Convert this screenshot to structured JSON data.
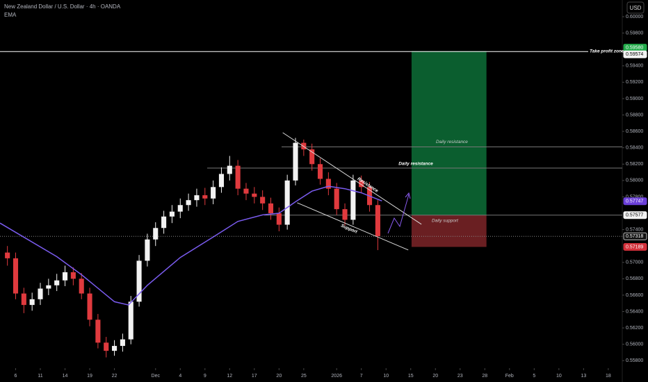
{
  "chart_data": {
    "type": "candlestick",
    "title": "New Zealand Dollar / U.S. Dollar · 4h · OANDA",
    "subtitle": "EMA",
    "currency": "USD",
    "up_color": "#f2f2f2",
    "down_color": "#e03a3e",
    "xlim": [
      -1.9,
      73.7
    ],
    "ylim": [
      0.55709,
      0.60204
    ],
    "grid": false,
    "xticks": [
      {
        "value": 0,
        "label": "6"
      },
      {
        "value": 3,
        "label": "11"
      },
      {
        "value": 6,
        "label": "14"
      },
      {
        "value": 9,
        "label": "19"
      },
      {
        "value": 12,
        "label": "22"
      },
      {
        "value": 17,
        "label": "Dec"
      },
      {
        "value": 20,
        "label": "4"
      },
      {
        "value": 23,
        "label": "9"
      },
      {
        "value": 26,
        "label": "12"
      },
      {
        "value": 29,
        "label": "17"
      },
      {
        "value": 32,
        "label": "20"
      },
      {
        "value": 35,
        "label": "25"
      },
      {
        "value": 39,
        "label": "2026"
      },
      {
        "value": 42,
        "label": "7"
      },
      {
        "value": 45,
        "label": "10"
      },
      {
        "value": 48,
        "label": "15"
      },
      {
        "value": 51,
        "label": "20"
      },
      {
        "value": 54,
        "label": "23"
      },
      {
        "value": 57,
        "label": "28"
      },
      {
        "value": 60,
        "label": "Feb"
      },
      {
        "value": 63,
        "label": "5"
      },
      {
        "value": 66,
        "label": "10"
      },
      {
        "value": 69,
        "label": "13"
      },
      {
        "value": 72,
        "label": "18"
      }
    ],
    "yticks": [
      {
        "value": 0.558,
        "label": "0.55800"
      },
      {
        "value": 0.56,
        "label": "0.56000"
      },
      {
        "value": 0.562,
        "label": "0.56200"
      },
      {
        "value": 0.564,
        "label": "0.56400"
      },
      {
        "value": 0.566,
        "label": "0.56600"
      },
      {
        "value": 0.568,
        "label": "0.56800"
      },
      {
        "value": 0.57,
        "label": "0.57000"
      },
      {
        "value": 0.574,
        "label": "0.57400"
      },
      {
        "value": 0.578,
        "label": "0.57800"
      },
      {
        "value": 0.58,
        "label": "0.58000"
      },
      {
        "value": 0.582,
        "label": "0.58200"
      },
      {
        "value": 0.584,
        "label": "0.58400"
      },
      {
        "value": 0.586,
        "label": "0.58600"
      },
      {
        "value": 0.588,
        "label": "0.58800"
      },
      {
        "value": 0.59,
        "label": "0.59000"
      },
      {
        "value": 0.592,
        "label": "0.59200"
      },
      {
        "value": 0.594,
        "label": "0.59400"
      },
      {
        "value": 0.598,
        "label": "0.59800"
      },
      {
        "value": 0.6,
        "label": "0.60000"
      }
    ],
    "x": [
      -1,
      0,
      1,
      2,
      3,
      4,
      5,
      6,
      7,
      8,
      9,
      10,
      11,
      12,
      13,
      14,
      15,
      16,
      17,
      18,
      19,
      20,
      21,
      22,
      23,
      24,
      25,
      26,
      27,
      28,
      29,
      30,
      31,
      32,
      33,
      34,
      35,
      36,
      37,
      38,
      39,
      40,
      41,
      42,
      43,
      44
    ],
    "open": [
      0.5712,
      0.5705,
      0.5662,
      0.5648,
      0.5655,
      0.5668,
      0.5672,
      0.5678,
      0.5688,
      0.568,
      0.5662,
      0.563,
      0.5602,
      0.5592,
      0.5598,
      0.5606,
      0.5652,
      0.5702,
      0.5728,
      0.5742,
      0.5756,
      0.5762,
      0.577,
      0.5776,
      0.5782,
      0.5778,
      0.5792,
      0.5808,
      0.5818,
      0.579,
      0.5784,
      0.578,
      0.5772,
      0.576,
      0.5746,
      0.58,
      0.5846,
      0.5838,
      0.582,
      0.5802,
      0.579,
      0.5765,
      0.5752,
      0.58,
      0.5792,
      0.577
    ],
    "high": [
      0.572,
      0.5712,
      0.5669,
      0.5663,
      0.5675,
      0.568,
      0.5686,
      0.5696,
      0.5694,
      0.5687,
      0.5669,
      0.5637,
      0.5609,
      0.5605,
      0.5613,
      0.5659,
      0.5709,
      0.5735,
      0.5749,
      0.5763,
      0.577,
      0.5778,
      0.5784,
      0.579,
      0.5791,
      0.58,
      0.5816,
      0.583,
      0.5825,
      0.5797,
      0.5792,
      0.5788,
      0.5779,
      0.5767,
      0.5807,
      0.5852,
      0.585,
      0.5845,
      0.5827,
      0.581,
      0.5797,
      0.5772,
      0.5807,
      0.5806,
      0.5798,
      0.5776
    ],
    "low": [
      0.5696,
      0.5655,
      0.5638,
      0.5641,
      0.5648,
      0.566,
      0.5665,
      0.5671,
      0.5672,
      0.5655,
      0.5622,
      0.5595,
      0.5584,
      0.5586,
      0.5591,
      0.56,
      0.5646,
      0.5695,
      0.572,
      0.5735,
      0.5748,
      0.5754,
      0.5763,
      0.5768,
      0.577,
      0.5771,
      0.5785,
      0.58,
      0.5782,
      0.5776,
      0.5772,
      0.5764,
      0.5752,
      0.5738,
      0.574,
      0.5794,
      0.583,
      0.5812,
      0.5795,
      0.5782,
      0.5758,
      0.5745,
      0.5746,
      0.5785,
      0.5762,
      0.5715
    ],
    "close": [
      0.5705,
      0.5662,
      0.5648,
      0.5655,
      0.5668,
      0.5672,
      0.5678,
      0.5688,
      0.568,
      0.5662,
      0.563,
      0.5602,
      0.5592,
      0.5598,
      0.5606,
      0.5652,
      0.5702,
      0.5728,
      0.5742,
      0.5756,
      0.5762,
      0.577,
      0.5776,
      0.5782,
      0.5778,
      0.5792,
      0.5808,
      0.5818,
      0.579,
      0.5784,
      0.578,
      0.5772,
      0.576,
      0.5746,
      0.58,
      0.5846,
      0.5838,
      0.582,
      0.5802,
      0.579,
      0.5765,
      0.5752,
      0.58,
      0.5792,
      0.577,
      0.5732
    ],
    "ema": {
      "color": "#7b5cf0",
      "x": [
        -1.9,
        5,
        8,
        12,
        13.7,
        16,
        20,
        24,
        27,
        30,
        32,
        34,
        36,
        38,
        40,
        42,
        44.5
      ],
      "values": [
        0.5748,
        0.5707,
        0.5685,
        0.5652,
        0.5648,
        0.5672,
        0.5706,
        0.5731,
        0.575,
        0.5758,
        0.576,
        0.5774,
        0.5787,
        0.5793,
        0.579,
        0.5785,
        0.5775
      ]
    },
    "zones": [
      {
        "color": "#0b5e2f",
        "x": [
          48.1,
          57.2
        ],
        "range": [
          0.57577,
          0.5958
        ]
      },
      {
        "color": "#6a1f22",
        "x": [
          48.1,
          57.2
        ],
        "range": [
          0.57189,
          0.57577
        ]
      }
    ],
    "levels": [
      {
        "text": "Take profit zone",
        "value": 0.59574
      },
      {
        "text": "Daily resistance",
        "value": 0.5841
      },
      {
        "text": "Daily resistance",
        "value": 0.58152
      },
      {
        "text": "Daily support",
        "value": 0.57577
      }
    ],
    "current_price": 0.57318,
    "trendlines": [
      {
        "text": "Resistance",
        "x": [
          32.45,
          49.3
        ],
        "values": [
          0.58584,
          0.57465
        ]
      },
      {
        "text": "Support",
        "x": [
          34.2,
          47.7
        ],
        "values": [
          0.57728,
          0.57151
        ]
      }
    ],
    "price_labels": [
      {
        "value": 0.5958,
        "label": "0.59580",
        "color": "#22ab4a"
      },
      {
        "value": 0.59574,
        "label": "0.59574",
        "color": "#f2f2f2"
      },
      {
        "value": 0.57747,
        "label": "0.57747",
        "color": "#6a3fd8"
      },
      {
        "value": 0.57577,
        "label": "0.57577",
        "color": "#f2f2f2"
      },
      {
        "value": 0.57318,
        "label": "0.57318",
        "color": "#111111"
      },
      {
        "value": 0.57189,
        "label": "0.57189",
        "color": "#d3303a"
      }
    ]
  }
}
